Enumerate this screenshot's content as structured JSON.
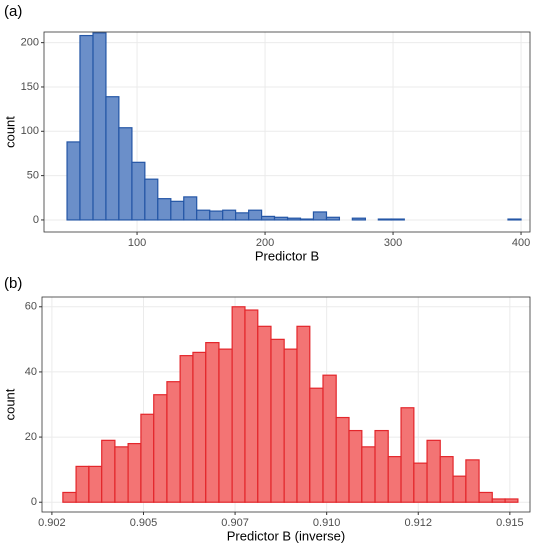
{
  "chart_data": [
    {
      "type": "histogram",
      "panel_label": "(a)",
      "x_label": "Predictor B",
      "y_label": "count",
      "color": "#6b8fc9",
      "edge_color": "#2456a6",
      "grid": true,
      "bins": [
        45.3,
        55.4,
        65.6,
        75.7,
        85.8,
        96.0,
        106.1,
        116.2,
        126.4,
        136.5,
        146.6,
        156.8,
        166.9,
        177.0,
        187.2,
        197.3,
        207.4,
        217.6,
        227.7,
        237.8,
        248.0,
        258.1,
        268.2,
        278.4,
        288.5,
        298.6,
        308.8,
        318.9,
        329.0,
        339.2,
        349.3,
        359.4,
        369.6,
        379.7,
        389.8,
        400.0
      ],
      "values": [
        88,
        208,
        211,
        139,
        104,
        65,
        46,
        24,
        21,
        26,
        11,
        10,
        11,
        8,
        11,
        4,
        3,
        2,
        1,
        9,
        3,
        0,
        2,
        0,
        1,
        1,
        0,
        0,
        0,
        0,
        0,
        0,
        0,
        0,
        1
      ],
      "xlim": [
        27.3,
        407
      ],
      "xticks": [
        100,
        200,
        300,
        400
      ],
      "ylim": [
        -13.6,
        212
      ],
      "yticks": [
        0,
        50,
        100,
        150,
        200
      ]
    },
    {
      "type": "histogram",
      "panel_label": "(b)",
      "x_label": "Predictor B (inverse)",
      "y_label": "count",
      "color": "#f37474",
      "edge_color": "#e3262b",
      "grid": true,
      "bins": [
        0.9028,
        0.90316,
        0.90351,
        0.90386,
        0.90422,
        0.90458,
        0.90493,
        0.90528,
        0.90564,
        0.906,
        0.90635,
        0.9067,
        0.90706,
        0.90742,
        0.90777,
        0.90812,
        0.90848,
        0.90884,
        0.90919,
        0.90954,
        0.9099,
        0.91026,
        0.91061,
        0.91096,
        0.91132,
        0.91168,
        0.91203,
        0.91238,
        0.91274,
        0.9131,
        0.91345,
        0.9138,
        0.91416,
        0.91452,
        0.91487,
        0.91522
      ],
      "values": [
        3,
        11,
        11,
        19,
        17,
        18,
        27,
        33,
        37,
        45,
        46,
        49,
        47,
        60,
        59,
        54,
        50,
        47,
        54,
        35,
        39,
        26,
        22,
        17,
        22,
        14,
        29,
        12,
        19,
        14,
        8,
        13,
        3,
        1,
        1
      ],
      "xlim": [
        0.90223,
        0.91555
      ],
      "xticks": [
        {
          "value": 0.9025,
          "label": "0.902"
        },
        0.905,
        {
          "value": 0.9075,
          "label": "0.907"
        },
        {
          "value": 0.91,
          "label": "0.910"
        },
        {
          "value": 0.9125,
          "label": "0.912"
        },
        0.915
      ],
      "ylim": [
        -3,
        63
      ],
      "yticks": [
        0,
        20,
        40,
        60
      ]
    }
  ]
}
